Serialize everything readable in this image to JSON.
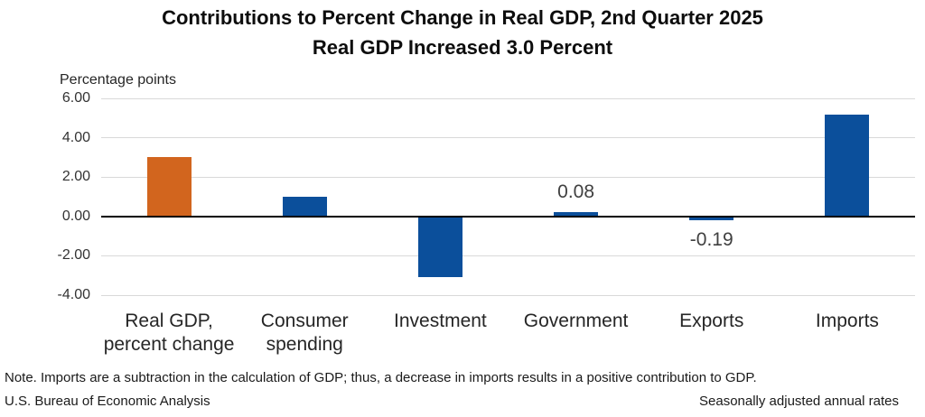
{
  "chart_data": {
    "type": "bar",
    "title": "Contributions to Percent Change in Real GDP, 2nd Quarter 2025",
    "subtitle": "Real GDP Increased 3.0 Percent",
    "ylabel": "Percentage points",
    "categories": [
      [
        "Real GDP,",
        "percent change"
      ],
      [
        "Consumer",
        "spending"
      ],
      [
        "Investment"
      ],
      [
        "Government"
      ],
      [
        "Exports"
      ],
      [
        "Imports"
      ]
    ],
    "values": [
      3.0,
      0.98,
      -3.09,
      0.08,
      -0.19,
      5.18
    ],
    "data_labels": [
      null,
      null,
      null,
      "0.08",
      "-0.19",
      null
    ],
    "bar_colors": [
      "#D2651E",
      "#0B4F9B",
      "#0B4F9B",
      "#0B4F9B",
      "#0B4F9B",
      "#0B4F9B"
    ],
    "ylim": [
      -4,
      6
    ],
    "yticks": [
      6,
      4,
      2,
      0,
      -2,
      -4
    ],
    "ytick_labels": [
      "6.00",
      "4.00",
      "2.00",
      "0.00",
      "-2.00",
      "-4.00"
    ],
    "grid": true,
    "gridline_color": "#D9D9D9",
    "zero_line_color": "#000000",
    "legend": "none"
  },
  "footer": {
    "note": "Note. Imports are a subtraction in the calculation of GDP; thus, a decrease in imports results in a positive contribution to GDP.",
    "source": "U.S. Bureau of Economic Analysis",
    "rates": "Seasonally adjusted annual rates"
  }
}
